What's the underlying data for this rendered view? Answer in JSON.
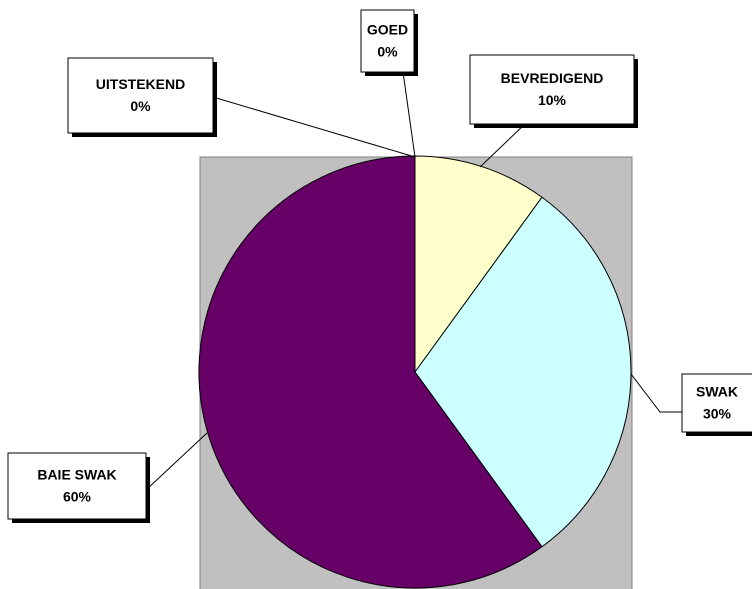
{
  "chart_data": {
    "type": "pie",
    "categories": [
      "UITSTEKEND",
      "GOED",
      "BEVREDIGEND",
      "SWAK",
      "BAIE SWAK"
    ],
    "values": [
      0,
      0,
      10,
      30,
      60
    ],
    "value_labels": [
      "0%",
      "0%",
      "10%",
      "30%",
      "60%"
    ],
    "colors": [
      "#9999ff",
      "#993366",
      "#ffffcc",
      "#ccffff",
      "#660066"
    ]
  }
}
